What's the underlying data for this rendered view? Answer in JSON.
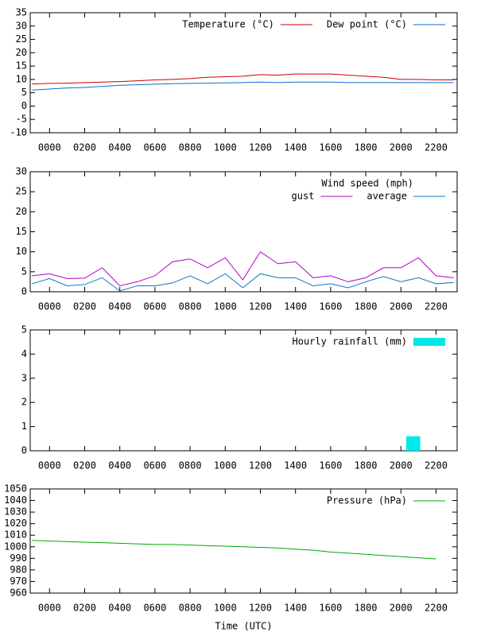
{
  "chart_data": [
    {
      "type": "line",
      "x": [
        -1,
        0,
        1,
        2,
        3,
        4,
        5,
        6,
        7,
        8,
        9,
        10,
        11,
        12,
        13,
        14,
        15,
        16,
        17,
        18,
        19,
        20,
        21,
        22,
        23
      ],
      "series": [
        {
          "name": "Temperature (°C)",
          "color": "#cc0000",
          "values": [
            8.3,
            8.5,
            8.6,
            8.8,
            9,
            9.2,
            9.5,
            9.8,
            10,
            10.3,
            10.8,
            11,
            11.2,
            11.8,
            11.6,
            12,
            12,
            12,
            11.6,
            11.2,
            10.8,
            10,
            10,
            9.8,
            9.8
          ]
        },
        {
          "name": "Dew point (°C)",
          "color": "#0a6ed1",
          "values": [
            6,
            6.4,
            6.8,
            7,
            7.4,
            7.8,
            8,
            8.2,
            8.4,
            8.5,
            8.6,
            8.7,
            8.8,
            9,
            8.8,
            9,
            9,
            9,
            8.8,
            8.8,
            8.8,
            8.8,
            8.8,
            8.8,
            8.8
          ]
        }
      ],
      "xlim": [
        -1.1,
        23.2
      ],
      "xticks": [
        {
          "value": 0,
          "label": "0000"
        },
        {
          "value": 2,
          "label": "0200"
        },
        {
          "value": 4,
          "label": "0400"
        },
        {
          "value": 6,
          "label": "0600"
        },
        {
          "value": 8,
          "label": "0800"
        },
        {
          "value": 10,
          "label": "1000"
        },
        {
          "value": 12,
          "label": "1200"
        },
        {
          "value": 14,
          "label": "1400"
        },
        {
          "value": 16,
          "label": "1600"
        },
        {
          "value": 18,
          "label": "1800"
        },
        {
          "value": 20,
          "label": "2000"
        },
        {
          "value": 22,
          "label": "2200"
        }
      ],
      "ylim": [
        -10,
        35
      ],
      "yticks": [
        -10,
        -5,
        0,
        5,
        10,
        15,
        20,
        25,
        30,
        35
      ],
      "legend": "top-right"
    },
    {
      "type": "line",
      "legend_title": "Wind speed (mph)",
      "x": [
        -1,
        0,
        1,
        2,
        3,
        4,
        5,
        6,
        7,
        8,
        9,
        10,
        11,
        12,
        13,
        14,
        15,
        16,
        17,
        18,
        19,
        20,
        21,
        22,
        23
      ],
      "series": [
        {
          "name": "gust",
          "color": "#b000c8",
          "values": [
            4,
            4.5,
            3.3,
            3.4,
            6,
            1.5,
            2.5,
            4,
            7.5,
            8.2,
            6,
            8.5,
            3,
            10,
            7,
            7.5,
            3.5,
            4,
            2.5,
            3.5,
            6,
            6,
            8.5,
            4,
            3.5
          ]
        },
        {
          "name": "average",
          "color": "#0a78c8",
          "values": [
            2,
            3.3,
            1.5,
            1.8,
            3.5,
            0.2,
            1.5,
            1.5,
            2.2,
            4,
            2,
            4.5,
            1,
            4.5,
            3.5,
            3.5,
            1.5,
            2,
            1,
            2.5,
            3.8,
            2.5,
            3.5,
            2,
            2.3
          ]
        }
      ],
      "xlim": [
        -1.1,
        23.2
      ],
      "xticks": [
        {
          "value": 0,
          "label": "0000"
        },
        {
          "value": 2,
          "label": "0200"
        },
        {
          "value": 4,
          "label": "0400"
        },
        {
          "value": 6,
          "label": "0600"
        },
        {
          "value": 8,
          "label": "0800"
        },
        {
          "value": 10,
          "label": "1000"
        },
        {
          "value": 12,
          "label": "1200"
        },
        {
          "value": 14,
          "label": "1400"
        },
        {
          "value": 16,
          "label": "1600"
        },
        {
          "value": 18,
          "label": "1800"
        },
        {
          "value": 20,
          "label": "2000"
        },
        {
          "value": 22,
          "label": "2200"
        }
      ],
      "ylim": [
        0,
        30
      ],
      "yticks": [
        0,
        5,
        10,
        15,
        20,
        25,
        30
      ],
      "legend": "top-right"
    },
    {
      "type": "histogram",
      "name": "Hourly rainfall (mm)",
      "color": "#00e8e8",
      "bins": [
        20.3,
        21.1
      ],
      "values": [
        0.6
      ],
      "xlim": [
        -1.1,
        23.2
      ],
      "xticks": [
        {
          "value": 0,
          "label": "0000"
        },
        {
          "value": 2,
          "label": "0200"
        },
        {
          "value": 4,
          "label": "0400"
        },
        {
          "value": 6,
          "label": "0600"
        },
        {
          "value": 8,
          "label": "0800"
        },
        {
          "value": 10,
          "label": "1000"
        },
        {
          "value": 12,
          "label": "1200"
        },
        {
          "value": 14,
          "label": "1400"
        },
        {
          "value": 16,
          "label": "1600"
        },
        {
          "value": 18,
          "label": "1800"
        },
        {
          "value": 20,
          "label": "2000"
        },
        {
          "value": 22,
          "label": "2200"
        }
      ],
      "ylim": [
        0,
        5
      ],
      "yticks": [
        0,
        1,
        2,
        3,
        4,
        5
      ],
      "legend": "top-right"
    },
    {
      "type": "line",
      "xlabel": "Time (UTC)",
      "x": [
        -1,
        0,
        1,
        2,
        3,
        4,
        5,
        6,
        7,
        8,
        9,
        10,
        11,
        12,
        13,
        14,
        15,
        16,
        17,
        18,
        19,
        20,
        21,
        22
      ],
      "series": [
        {
          "name": "Pressure (hPa)",
          "color": "#00aa00",
          "values": [
            1005.5,
            1005,
            1004.5,
            1004,
            1003.5,
            1003,
            1002.5,
            1002,
            1002,
            1001.5,
            1001,
            1000.5,
            1000,
            999.5,
            999,
            998,
            997,
            995.5,
            994.5,
            993.5,
            992.5,
            991.5,
            990.5,
            989.5
          ]
        }
      ],
      "xlim": [
        -1.1,
        23.2
      ],
      "xticks": [
        {
          "value": 0,
          "label": "0000"
        },
        {
          "value": 2,
          "label": "0200"
        },
        {
          "value": 4,
          "label": "0400"
        },
        {
          "value": 6,
          "label": "0600"
        },
        {
          "value": 8,
          "label": "0800"
        },
        {
          "value": 10,
          "label": "1000"
        },
        {
          "value": 12,
          "label": "1200"
        },
        {
          "value": 14,
          "label": "1400"
        },
        {
          "value": 16,
          "label": "1600"
        },
        {
          "value": 18,
          "label": "1800"
        },
        {
          "value": 20,
          "label": "2000"
        },
        {
          "value": 22,
          "label": "2200"
        }
      ],
      "ylim": [
        960,
        1050
      ],
      "yticks": [
        960,
        970,
        980,
        990,
        1000,
        1010,
        1020,
        1030,
        1040,
        1050
      ],
      "legend": "top-right"
    }
  ]
}
